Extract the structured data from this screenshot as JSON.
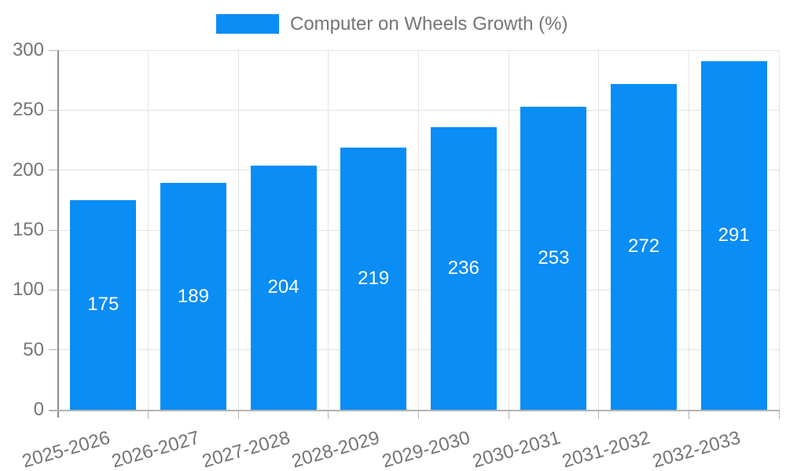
{
  "chart_data": {
    "type": "bar",
    "title": "Computer on Wheels Growth (%)",
    "legend": {
      "label": "Computer on Wheels Growth (%)",
      "position": "top-center"
    },
    "categories": [
      "2025-2026",
      "2026-2027",
      "2027-2028",
      "2028-2029",
      "2029-2030",
      "2030-2031",
      "2031-2032",
      "2032-2033"
    ],
    "values": [
      175,
      189,
      204,
      219,
      236,
      253,
      272,
      291
    ],
    "value_labels": [
      "175",
      "189",
      "204",
      "219",
      "236",
      "253",
      "272",
      "291"
    ],
    "xlabel": "",
    "ylabel": "",
    "ylim": [
      0,
      300
    ],
    "ytick_step": 50,
    "yticks": [
      "0",
      "50",
      "100",
      "150",
      "200",
      "250",
      "300"
    ],
    "grid": true,
    "colors": {
      "bar": "#0A8DF5",
      "tick_text": "#757575",
      "legend_text": "#757575",
      "gridline": "#e3e3e3",
      "axis_line": "#8c8c8c",
      "baseline": "#b3b3b3",
      "tick_mark": "#b3b3b3",
      "value_text": "#ffffff",
      "background": "#ffffff"
    }
  }
}
